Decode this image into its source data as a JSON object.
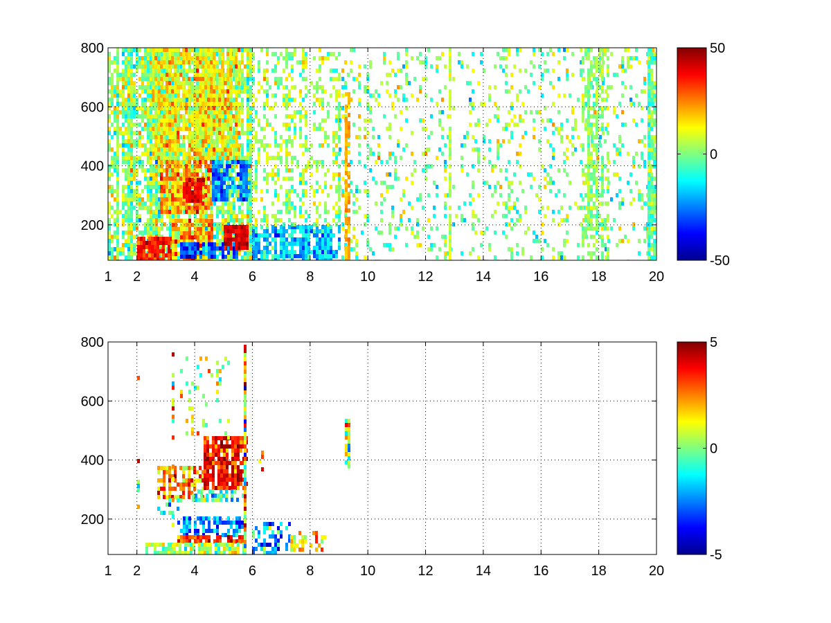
{
  "chart_data": [
    {
      "type": "heatmap",
      "title": "",
      "xlabel": "",
      "ylabel": "",
      "xlim": [
        1,
        20
      ],
      "ylim": [
        80,
        800
      ],
      "x_ticks": [
        1,
        2,
        4,
        6,
        8,
        10,
        12,
        14,
        16,
        18,
        20
      ],
      "y_ticks": [
        200,
        400,
        600,
        800
      ],
      "grid": true,
      "colormap": "jet",
      "colorbar": {
        "placement": "right",
        "range": [
          -50,
          50
        ],
        "ticks": [
          -50,
          0,
          50
        ]
      },
      "regions": [
        {
          "x": [
            1.0,
            6.0
          ],
          "y": [
            80,
            800
          ],
          "level": 2,
          "spread": 14,
          "density": 0.72
        },
        {
          "x": [
            2.0,
            3.2
          ],
          "y": [
            80,
            160
          ],
          "level": 35,
          "spread": 8,
          "density": 0.95
        },
        {
          "x": [
            3.2,
            4.6
          ],
          "y": [
            80,
            220
          ],
          "level": 20,
          "spread": 14,
          "density": 0.95
        },
        {
          "x": [
            3.5,
            5.5
          ],
          "y": [
            85,
            140
          ],
          "level": -30,
          "spread": 12,
          "density": 0.9
        },
        {
          "x": [
            5.0,
            5.8
          ],
          "y": [
            120,
            200
          ],
          "level": 40,
          "spread": 6,
          "density": 0.9
        },
        {
          "x": [
            2.8,
            4.6
          ],
          "y": [
            240,
            420
          ],
          "level": 22,
          "spread": 12,
          "density": 0.95
        },
        {
          "x": [
            3.6,
            4.3
          ],
          "y": [
            280,
            360
          ],
          "level": 38,
          "spread": 6,
          "density": 0.95
        },
        {
          "x": [
            4.6,
            5.9
          ],
          "y": [
            280,
            420
          ],
          "level": -25,
          "spread": 10,
          "density": 0.9
        },
        {
          "x": [
            2.5,
            5.5
          ],
          "y": [
            420,
            800
          ],
          "level": 12,
          "spread": 12,
          "density": 0.8
        },
        {
          "x": [
            6.0,
            9.0
          ],
          "y": [
            80,
            200
          ],
          "level": -18,
          "spread": 12,
          "density": 0.85
        },
        {
          "x": [
            6.0,
            9.0
          ],
          "y": [
            200,
            800
          ],
          "level": 3,
          "spread": 12,
          "density": 0.35
        },
        {
          "x": [
            9.0,
            20.0
          ],
          "y": [
            80,
            800
          ],
          "level": 0,
          "spread": 14,
          "density": 0.16
        },
        {
          "x": [
            9.2,
            9.4
          ],
          "y": [
            80,
            650
          ],
          "level": 20,
          "spread": 4,
          "density": 0.9
        },
        {
          "x": [
            12.8,
            12.9
          ],
          "y": [
            80,
            800
          ],
          "level": 6,
          "spread": 5,
          "density": 0.85
        },
        {
          "x": [
            17.4,
            18.3
          ],
          "y": [
            80,
            800
          ],
          "level": 2,
          "spread": 8,
          "density": 0.5
        },
        {
          "x": [
            19.7,
            19.9
          ],
          "y": [
            80,
            800
          ],
          "level": -3,
          "spread": 10,
          "density": 0.85
        }
      ]
    },
    {
      "type": "heatmap",
      "title": "",
      "xlabel": "",
      "ylabel": "",
      "xlim": [
        1,
        20
      ],
      "ylim": [
        80,
        800
      ],
      "x_ticks": [
        1,
        2,
        4,
        6,
        8,
        10,
        12,
        14,
        16,
        18,
        20
      ],
      "y_ticks": [
        200,
        400,
        600,
        800
      ],
      "grid": true,
      "colormap": "jet",
      "colorbar": {
        "placement": "right",
        "range": [
          -5,
          5
        ],
        "ticks": [
          -5,
          0,
          5
        ]
      },
      "regions": [
        {
          "x": [
            2.7,
            4.3
          ],
          "y": [
            270,
            380
          ],
          "level": 2.5,
          "spread": 1.6,
          "density": 0.75
        },
        {
          "x": [
            4.3,
            5.8
          ],
          "y": [
            300,
            480
          ],
          "level": 3.6,
          "spread": 1.2,
          "density": 0.78
        },
        {
          "x": [
            3.9,
            5.7
          ],
          "y": [
            260,
            300
          ],
          "level": -1.2,
          "spread": 1.3,
          "density": 0.55
        },
        {
          "x": [
            2.7,
            3.5
          ],
          "y": [
            220,
            270
          ],
          "level": -0.5,
          "spread": 1.5,
          "density": 0.5
        },
        {
          "x": [
            3.4,
            5.7
          ],
          "y": [
            140,
            210
          ],
          "level": -2.5,
          "spread": 1.4,
          "density": 0.65
        },
        {
          "x": [
            3.4,
            5.7
          ],
          "y": [
            125,
            145
          ],
          "level": 3.3,
          "spread": 1.0,
          "density": 0.85
        },
        {
          "x": [
            2.3,
            5.7
          ],
          "y": [
            80,
            120
          ],
          "level": 0.5,
          "spread": 1.4,
          "density": 0.9
        },
        {
          "x": [
            6.0,
            7.3
          ],
          "y": [
            80,
            190
          ],
          "level": -2.0,
          "spread": 2.0,
          "density": 0.45
        },
        {
          "x": [
            7.3,
            8.5
          ],
          "y": [
            100,
            160
          ],
          "level": 1.8,
          "spread": 1.8,
          "density": 0.6
        },
        {
          "x": [
            3.5,
            5.2
          ],
          "y": [
            480,
            750
          ],
          "level": 0.5,
          "spread": 2.0,
          "density": 0.12
        },
        {
          "x": [
            5.7,
            5.8
          ],
          "y": [
            80,
            790
          ],
          "level": 1.0,
          "spread": 3.2,
          "density": 0.7
        },
        {
          "x": [
            2.0,
            2.1
          ],
          "y": [
            200,
            700
          ],
          "level": 2.0,
          "spread": 3.0,
          "density": 0.3
        },
        {
          "x": [
            3.2,
            3.25
          ],
          "y": [
            80,
            780
          ],
          "level": 2.0,
          "spread": 3.0,
          "density": 0.3
        },
        {
          "x": [
            9.2,
            9.4
          ],
          "y": [
            380,
            540
          ],
          "level": 0.5,
          "spread": 2.5,
          "density": 0.75
        },
        {
          "x": [
            6.2,
            6.4
          ],
          "y": [
            360,
            460
          ],
          "level": 3.0,
          "spread": 1.5,
          "density": 0.5
        }
      ]
    }
  ]
}
